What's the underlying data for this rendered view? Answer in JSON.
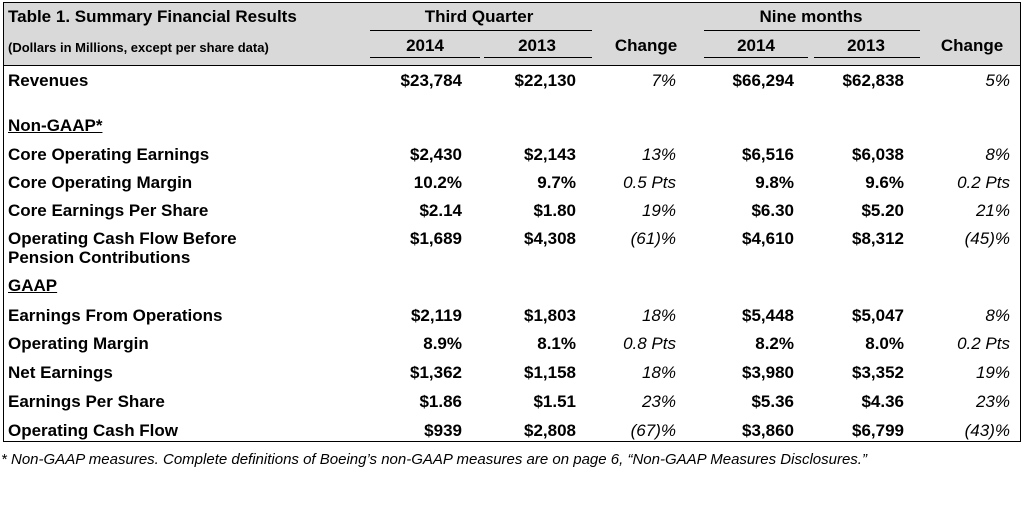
{
  "table": {
    "title": "Table 1.  Summary Financial Results",
    "subtitle": "(Dollars in Millions, except per share data)",
    "groups": [
      {
        "label": "Third Quarter"
      },
      {
        "label": "Nine months"
      }
    ],
    "columns": [
      "2014",
      "2013",
      "Change",
      "2014",
      "2013",
      "Change"
    ],
    "sections": [
      {
        "label": "Non-GAAP*"
      },
      {
        "label": "GAAP"
      }
    ],
    "rows": [
      {
        "label": "Revenues",
        "label2": "",
        "q14": "$23,784",
        "q13": "$22,130",
        "qchg": "7%",
        "n14": "$66,294",
        "n13": "$62,838",
        "nchg": "5%"
      },
      {
        "label": "Core Operating Earnings",
        "label2": "",
        "q14": "$2,430",
        "q13": "$2,143",
        "qchg": "13%",
        "n14": "$6,516",
        "n13": "$6,038",
        "nchg": "8%"
      },
      {
        "label": "Core Operating Margin",
        "label2": "",
        "q14": "10.2%",
        "q13": "9.7%",
        "qchg": "0.5 Pts",
        "n14": "9.8%",
        "n13": "9.6%",
        "nchg": "0.2 Pts"
      },
      {
        "label": "Core Earnings Per Share",
        "label2": "",
        "q14": "$2.14",
        "q13": "$1.80",
        "qchg": "19%",
        "n14": "$6.30",
        "n13": "$5.20",
        "nchg": "21%"
      },
      {
        "label": "Operating Cash Flow Before",
        "label2": "Pension Contributions",
        "q14": "$1,689",
        "q13": "$4,308",
        "qchg": "(61)%",
        "n14": "$4,610",
        "n13": "$8,312",
        "nchg": "(45)%"
      },
      {
        "label": "Earnings From Operations",
        "label2": "",
        "q14": "$2,119",
        "q13": "$1,803",
        "qchg": "18%",
        "n14": "$5,448",
        "n13": "$5,047",
        "nchg": "8%"
      },
      {
        "label": "Operating Margin",
        "label2": "",
        "q14": "8.9%",
        "q13": "8.1%",
        "qchg": "0.8 Pts",
        "n14": "8.2%",
        "n13": "8.0%",
        "nchg": "0.2 Pts"
      },
      {
        "label": "Net Earnings",
        "label2": "",
        "q14": "$1,362",
        "q13": "$1,158",
        "qchg": "18%",
        "n14": "$3,980",
        "n13": "$3,352",
        "nchg": "19%"
      },
      {
        "label": "Earnings Per Share",
        "label2": "",
        "q14": "$1.86",
        "q13": "$1.51",
        "qchg": "23%",
        "n14": "$5.36",
        "n13": "$4.36",
        "nchg": "23%"
      },
      {
        "label": "Operating Cash Flow",
        "label2": "",
        "q14": "$939",
        "q13": "$2,808",
        "qchg": "(67)%",
        "n14": "$3,860",
        "n13": "$6,799",
        "nchg": "(43)%"
      }
    ]
  },
  "footnote": "* Non-GAAP measures. Complete definitions of Boeing’s non-GAAP measures are on page 6, “Non-GAAP Measures Disclosures.”"
}
